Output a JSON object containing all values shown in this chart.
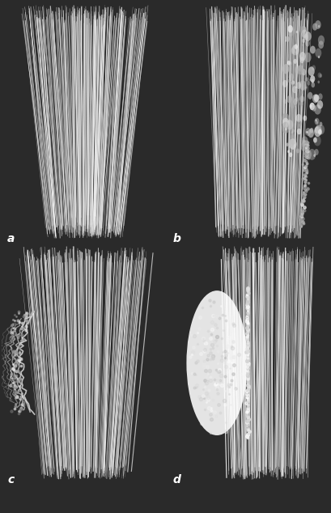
{
  "fig_width": 4.09,
  "fig_height": 6.34,
  "dpi": 100,
  "bg_color": "#2a2a2a",
  "panel_bg": "#111111",
  "labels": [
    "a",
    "b",
    "c",
    "d"
  ],
  "label_color": "#ffffff",
  "label_fontsize": 10,
  "panels": [
    {
      "type": "a",
      "seed": 11
    },
    {
      "type": "b",
      "seed": 22
    },
    {
      "type": "c",
      "seed": 33
    },
    {
      "type": "d",
      "seed": 44
    }
  ]
}
